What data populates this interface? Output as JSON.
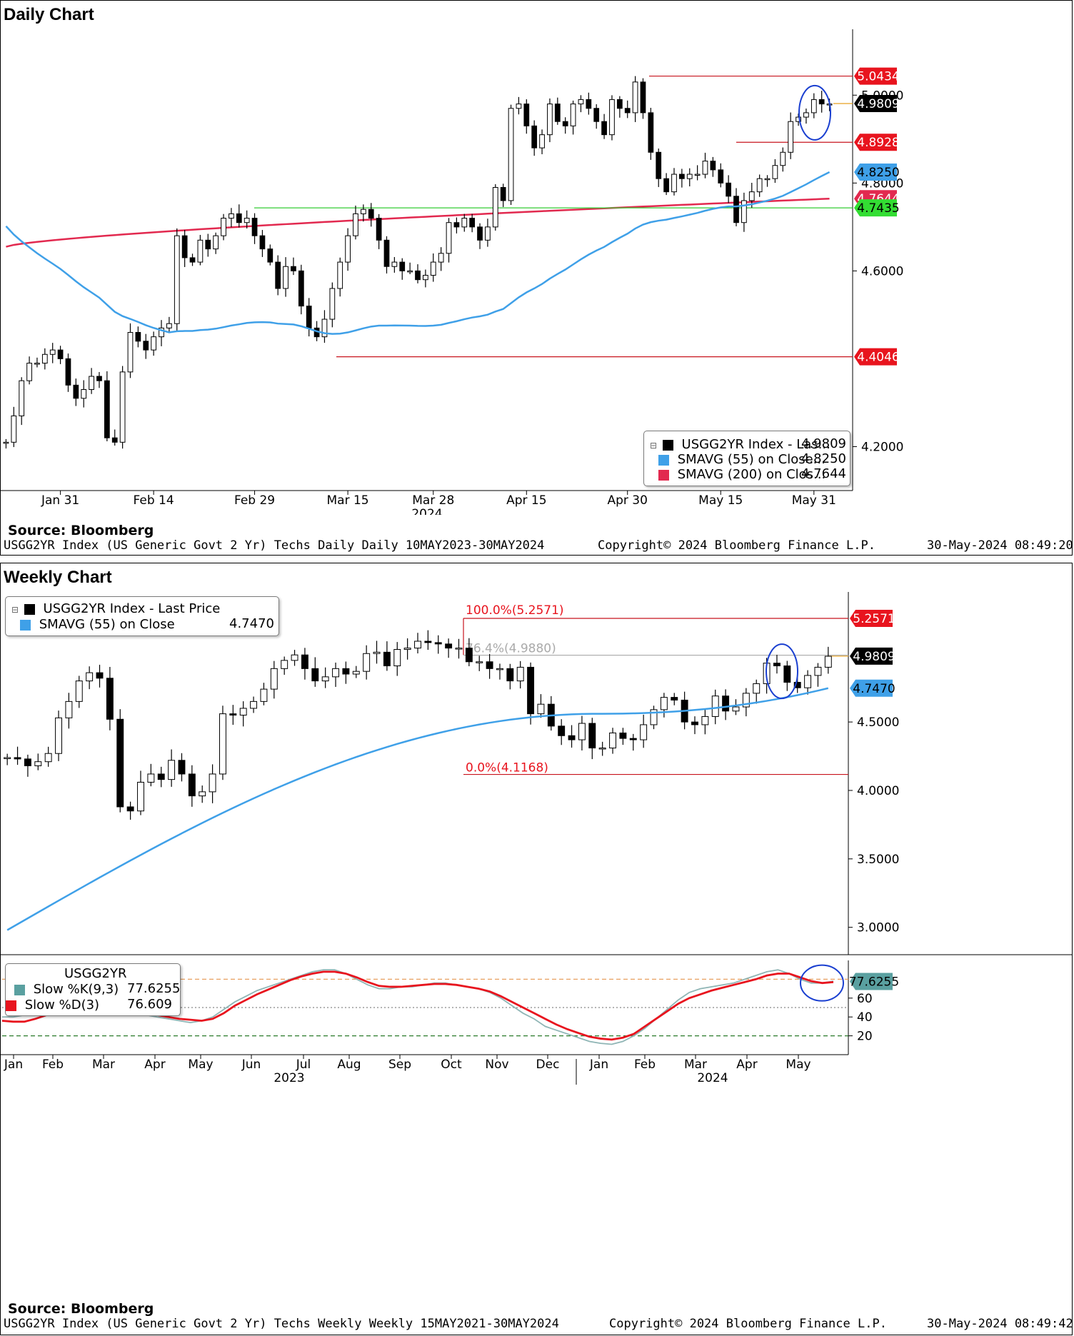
{
  "daily": {
    "title": "Daily Chart",
    "source": "Source:  Bloomberg",
    "footer_left": "USGG2YR Index (US Generic Govt 2 Yr) Techs Daily  Daily 10MAY2023-30MAY2024",
    "footer_mid": "Copyright© 2024 Bloomberg Finance L.P.",
    "footer_right": "30-May-2024 08:49:20",
    "legend": [
      {
        "label": "USGG2YR Index - Las...",
        "value": "4.9809",
        "color": "#000000"
      },
      {
        "label": "SMAVG (55)  on Close...",
        "value": "4.8250",
        "color": "#3fa0e8"
      },
      {
        "label": "SMAVG (200)  on Clos...",
        "value": "4.7644",
        "color": "#e2294f"
      }
    ]
  },
  "weekly": {
    "title": "Weekly Chart",
    "source": "Source:  Bloomberg",
    "footer_left": "USGG2YR Index (US Generic Govt 2 Yr) Techs Weekly  Weekly 15MAY2021-30MAY2024",
    "footer_mid": "Copyright© 2024 Bloomberg Finance L.P.",
    "footer_right": "30-May-2024 08:49:42",
    "legend": [
      {
        "label": "USGG2YR Index - Last Price",
        "value": "",
        "color": "#000000"
      },
      {
        "label": "SMAVG (55)  on Close",
        "value": "4.7470",
        "color": "#3fa0e8"
      }
    ],
    "stoch_legend": {
      "title": "USGG2YR",
      "rows": [
        {
          "label": "Slow %K(9,3)",
          "value": "77.6255",
          "color": "#5aa0a0"
        },
        {
          "label": "Slow %D(3)",
          "value": "76.609",
          "color": "#e8141e"
        }
      ]
    }
  },
  "chart_data": [
    {
      "type": "candlestick",
      "title": "Daily Chart",
      "x_tick_labels": [
        "Jan 31",
        "Feb 14",
        "Feb 29",
        "Mar 15",
        "Mar 28",
        "Apr 15",
        "Apr 30",
        "May 15",
        "May 31"
      ],
      "x_year_label": "2024",
      "y_ticks": [
        4.2,
        4.6,
        4.8,
        5.0
      ],
      "y_tick_labels": [
        "4.2000",
        "4.6000",
        "4.8000",
        "5.0000"
      ],
      "ylim": [
        4.1,
        5.15
      ],
      "closes": [
        4.21,
        4.27,
        4.35,
        4.39,
        4.39,
        4.41,
        4.42,
        4.4,
        4.34,
        4.31,
        4.33,
        4.36,
        4.35,
        4.22,
        4.21,
        4.37,
        4.46,
        4.44,
        4.42,
        4.45,
        4.47,
        4.48,
        4.68,
        4.63,
        4.62,
        4.67,
        4.65,
        4.68,
        4.72,
        4.73,
        4.71,
        4.72,
        4.68,
        4.65,
        4.62,
        4.56,
        4.61,
        4.6,
        4.52,
        4.47,
        4.45,
        4.49,
        4.56,
        4.62,
        4.68,
        4.73,
        4.74,
        4.72,
        4.67,
        4.61,
        4.62,
        4.6,
        4.6,
        4.58,
        4.59,
        4.62,
        4.64,
        4.71,
        4.7,
        4.72,
        4.7,
        4.67,
        4.7,
        4.79,
        4.76,
        4.97,
        4.98,
        4.93,
        4.88,
        4.91,
        4.98,
        4.94,
        4.93,
        4.98,
        4.99,
        4.97,
        4.94,
        4.91,
        4.99,
        4.97,
        4.96,
        5.03,
        4.96,
        4.87,
        4.81,
        4.78,
        4.82,
        4.81,
        4.82,
        4.82,
        4.85,
        4.83,
        4.8,
        4.77,
        4.71,
        4.76,
        4.78,
        4.81,
        4.81,
        4.84,
        4.87,
        4.94,
        4.95,
        4.96,
        4.99,
        4.98,
        4.98
      ],
      "sma55_label": "SMAVG (55)  on Close",
      "sma55_last": 4.825,
      "sma200_label": "SMAVG (200)  on Close",
      "sma200_last": 4.7644,
      "levels": [
        {
          "value": 5.0434,
          "label": "5.0434",
          "color": "#e8141e",
          "kind": "resistance"
        },
        {
          "value": 4.9809,
          "label": "4.9809",
          "color": "#000000",
          "kind": "last"
        },
        {
          "value": 4.8928,
          "label": "4.8928",
          "color": "#e8141e",
          "kind": "resistance"
        },
        {
          "value": 4.825,
          "label": "4.8250",
          "color": "#3fa0e8",
          "kind": "sma55"
        },
        {
          "value": 4.7644,
          "label": "4.7644",
          "color": "#e2294f",
          "kind": "sma200"
        },
        {
          "value": 4.7435,
          "label": "4.7435",
          "color": "#33dd33",
          "kind": "support"
        },
        {
          "value": 4.4046,
          "label": "4.4046",
          "color": "#e8141e",
          "kind": "support"
        }
      ]
    },
    {
      "type": "candlestick",
      "title": "Weekly Chart",
      "x_tick_labels": [
        "Jan",
        "Feb",
        "Mar",
        "Apr",
        "May",
        "Jun",
        "Jul",
        "Aug",
        "Sep",
        "Oct",
        "Nov",
        "Dec",
        "Jan",
        "Feb",
        "Mar",
        "Apr",
        "May"
      ],
      "x_year_labels": [
        "2023",
        "2024"
      ],
      "y_ticks": [
        3.0,
        3.5,
        4.0,
        4.5
      ],
      "y_tick_labels": [
        "3.0000",
        "3.5000",
        "4.0000",
        "4.5000"
      ],
      "ylim": [
        2.8,
        5.45
      ],
      "closes": [
        4.24,
        4.23,
        4.18,
        4.21,
        4.27,
        4.53,
        4.65,
        4.8,
        4.86,
        4.82,
        4.52,
        3.88,
        3.85,
        4.06,
        4.12,
        4.08,
        4.22,
        4.12,
        3.96,
        3.99,
        4.12,
        4.56,
        4.55,
        4.6,
        4.65,
        4.74,
        4.89,
        4.95,
        4.99,
        4.89,
        4.8,
        4.83,
        4.89,
        4.85,
        4.87,
        5.0,
        5.01,
        4.91,
        5.03,
        5.04,
        5.09,
        5.08,
        5.07,
        5.04,
        5.04,
        4.94,
        4.94,
        4.89,
        4.89,
        4.8,
        4.9,
        4.56,
        4.63,
        4.47,
        4.4,
        4.37,
        4.49,
        4.31,
        4.31,
        4.42,
        4.38,
        4.37,
        4.48,
        4.59,
        4.68,
        4.66,
        4.5,
        4.48,
        4.54,
        4.69,
        4.58,
        4.61,
        4.71,
        4.78,
        4.93,
        4.91,
        4.79,
        4.75,
        4.84,
        4.9,
        4.98
      ],
      "sma55_label": "SMAVG (55)  on Close",
      "sma55_last": 4.747,
      "fib_levels": [
        {
          "value": 5.2571,
          "label": "100.0%(5.2571)",
          "tag": "5.2571"
        },
        {
          "value": 4.988,
          "label": "76.4%(4.9880)",
          "tag": ""
        },
        {
          "value": 4.1168,
          "label": "0.0%(4.1168)",
          "tag": ""
        }
      ],
      "last_price": {
        "value": 4.9809,
        "label": "4.9809"
      },
      "sma55_tag": "4.7470"
    },
    {
      "type": "line",
      "title": "USGG2YR",
      "series": [
        {
          "name": "Slow %K(9,3)",
          "last": 77.6255
        },
        {
          "name": "Slow %D(3)",
          "last": 76.609
        }
      ],
      "y_ticks": [
        20,
        40,
        60
      ],
      "ylim": [
        0,
        100
      ],
      "reference_lines": [
        80,
        50,
        20
      ],
      "last_tag": "77.6255",
      "k_values": [
        40,
        40,
        42,
        45,
        48,
        52,
        58,
        62,
        66,
        68,
        64,
        56,
        48,
        42,
        40,
        38,
        36,
        34,
        36,
        40,
        48,
        56,
        62,
        68,
        72,
        76,
        80,
        84,
        88,
        90,
        90,
        86,
        80,
        74,
        70,
        70,
        72,
        72,
        74,
        76,
        76,
        74,
        72,
        70,
        66,
        60,
        52,
        44,
        38,
        30,
        26,
        22,
        18,
        14,
        12,
        11,
        14,
        20,
        28,
        38,
        48,
        58,
        66,
        70,
        72,
        74,
        76,
        80,
        84,
        88,
        90,
        86,
        80,
        76,
        76,
        78
      ],
      "d_values": [
        36,
        35,
        35,
        38,
        42,
        46,
        52,
        58,
        62,
        64,
        63,
        58,
        52,
        46,
        42,
        40,
        38,
        37,
        36,
        38,
        44,
        52,
        58,
        64,
        69,
        74,
        79,
        83,
        86,
        88,
        88,
        86,
        82,
        77,
        73,
        72,
        72,
        73,
        74,
        75,
        75,
        74,
        72,
        70,
        67,
        62,
        56,
        50,
        44,
        38,
        32,
        27,
        23,
        19,
        17,
        16,
        18,
        22,
        30,
        38,
        46,
        54,
        60,
        64,
        68,
        71,
        74,
        77,
        80,
        84,
        86,
        86,
        82,
        78,
        76,
        77
      ]
    }
  ]
}
